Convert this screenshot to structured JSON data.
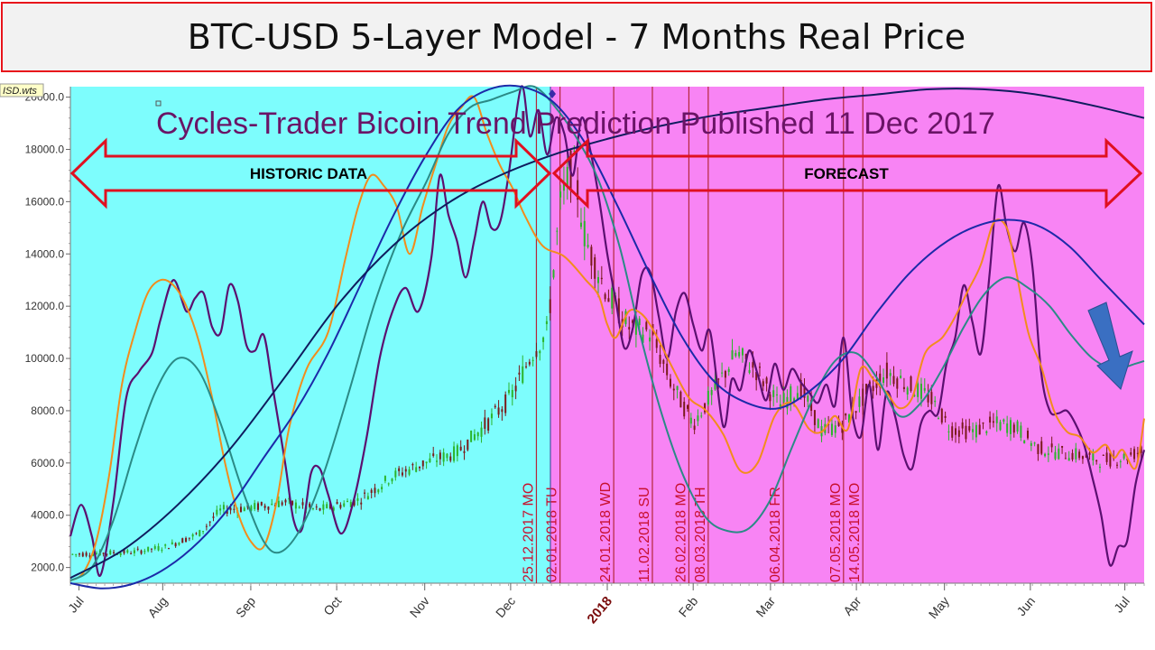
{
  "page_title": "BTC-USD 5-Layer Model - 7 Months Real Price",
  "chart_data": {
    "type": "line",
    "title": "Cycles-Trader Bicoin Trend Prediction Published 11 Dec 2017",
    "file_tag": "ISD.wts",
    "ylim": [
      1400,
      20400
    ],
    "y_ticks": [
      "2000.0",
      "4000.0",
      "6000.0",
      "8000.0",
      "10000.0",
      "12000.0",
      "14000.0",
      "16000.0",
      "18000.0",
      "20000.0"
    ],
    "months": [
      "Jul",
      "Aug",
      "Sep",
      "Oct",
      "Nov",
      "Dec",
      "2018",
      "Feb",
      "Mar",
      "Apr",
      "May",
      "Jun",
      "Jul"
    ],
    "regions": [
      {
        "name": "historic",
        "label": "HISTORIC DATA",
        "color": "#7dfdfd"
      },
      {
        "name": "forecast",
        "label": "FORECAST",
        "color": "#f884f4"
      }
    ],
    "markers": [
      {
        "date": "25.12.2017 MO"
      },
      {
        "date": "02.01.2018 TU"
      },
      {
        "date": "24.01.2018 WD"
      },
      {
        "date": "11.02.2018 SU"
      },
      {
        "date": "26.02.2018 MO"
      },
      {
        "date": "08.03.2018 TH"
      },
      {
        "date": "06.04.2018 FR"
      },
      {
        "date": "07.05.2018 MO"
      },
      {
        "date": "14.05.2018 MO"
      }
    ],
    "series": [
      {
        "color": "#5b1070",
        "style": "purple-line",
        "values": [
          [
            0,
            3200
          ],
          [
            5,
            4400
          ],
          [
            10,
            3200
          ],
          [
            14,
            1700
          ],
          [
            20,
            4500
          ],
          [
            26,
            8500
          ],
          [
            32,
            9500
          ],
          [
            38,
            10200
          ],
          [
            42,
            11500
          ],
          [
            48,
            13000
          ],
          [
            54,
            11800
          ],
          [
            58,
            12300
          ],
          [
            62,
            12500
          ],
          [
            66,
            11200
          ],
          [
            70,
            11000
          ],
          [
            74,
            12800
          ],
          [
            78,
            12200
          ],
          [
            82,
            10500
          ],
          [
            86,
            10300
          ],
          [
            90,
            10900
          ],
          [
            94,
            9000
          ],
          [
            100,
            6000
          ],
          [
            104,
            3800
          ],
          [
            108,
            3500
          ],
          [
            112,
            5600
          ],
          [
            116,
            5800
          ],
          [
            120,
            4800
          ],
          [
            126,
            3300
          ],
          [
            132,
            4600
          ],
          [
            138,
            7000
          ],
          [
            144,
            10000
          ],
          [
            150,
            11800
          ],
          [
            156,
            12700
          ],
          [
            162,
            11800
          ],
          [
            168,
            13800
          ],
          [
            172,
            17000
          ],
          [
            176,
            15500
          ],
          [
            180,
            14500
          ],
          [
            184,
            13100
          ],
          [
            188,
            14500
          ],
          [
            192,
            16000
          ],
          [
            196,
            15000
          ],
          [
            200,
            15200
          ],
          [
            204,
            17000
          ],
          [
            210,
            20400
          ],
          [
            214,
            18500
          ],
          [
            218,
            19500
          ],
          [
            222,
            17800
          ],
          [
            226,
            19200
          ],
          [
            230,
            18600
          ],
          [
            234,
            17000
          ],
          [
            238,
            19200
          ],
          [
            242,
            18000
          ],
          [
            246,
            16200
          ],
          [
            250,
            14000
          ],
          [
            254,
            12200
          ],
          [
            258,
            10400
          ],
          [
            262,
            11200
          ],
          [
            266,
            13200
          ],
          [
            270,
            13300
          ],
          [
            274,
            11600
          ],
          [
            278,
            10000
          ],
          [
            282,
            11800
          ],
          [
            286,
            12500
          ],
          [
            290,
            11300
          ],
          [
            294,
            10300
          ],
          [
            298,
            11000
          ],
          [
            304,
            7400
          ],
          [
            308,
            9200
          ],
          [
            312,
            8800
          ],
          [
            316,
            10300
          ],
          [
            320,
            9400
          ],
          [
            324,
            8400
          ],
          [
            328,
            9800
          ],
          [
            332,
            8800
          ],
          [
            336,
            9600
          ],
          [
            340,
            9100
          ],
          [
            344,
            8700
          ],
          [
            348,
            8300
          ],
          [
            352,
            9000
          ],
          [
            356,
            8200
          ],
          [
            360,
            10800
          ],
          [
            364,
            7900
          ],
          [
            368,
            7000
          ],
          [
            372,
            9000
          ],
          [
            376,
            6500
          ],
          [
            380,
            8700
          ],
          [
            384,
            7800
          ],
          [
            388,
            6300
          ],
          [
            392,
            5800
          ],
          [
            396,
            7500
          ],
          [
            400,
            8000
          ],
          [
            404,
            7900
          ],
          [
            408,
            9800
          ],
          [
            412,
            10800
          ],
          [
            416,
            12800
          ],
          [
            420,
            11400
          ],
          [
            424,
            10200
          ],
          [
            428,
            13200
          ],
          [
            432,
            16600
          ],
          [
            436,
            15000
          ],
          [
            440,
            14100
          ],
          [
            444,
            15200
          ],
          [
            448,
            13500
          ],
          [
            452,
            9500
          ],
          [
            456,
            8000
          ],
          [
            460,
            7900
          ],
          [
            464,
            8000
          ],
          [
            468,
            7500
          ],
          [
            472,
            6700
          ],
          [
            476,
            5400
          ],
          [
            480,
            4000
          ],
          [
            484,
            2100
          ],
          [
            488,
            2800
          ],
          [
            492,
            3000
          ],
          [
            496,
            5200
          ],
          [
            500,
            6500
          ]
        ]
      },
      {
        "color": "#f28c1c",
        "style": "orange-line",
        "values": [
          [
            0,
            1500
          ],
          [
            6,
            1800
          ],
          [
            12,
            3000
          ],
          [
            18,
            5500
          ],
          [
            24,
            9000
          ],
          [
            30,
            11000
          ],
          [
            36,
            12500
          ],
          [
            42,
            13000
          ],
          [
            48,
            12800
          ],
          [
            54,
            12000
          ],
          [
            60,
            10600
          ],
          [
            66,
            8500
          ],
          [
            72,
            6000
          ],
          [
            78,
            4100
          ],
          [
            84,
            3000
          ],
          [
            90,
            2800
          ],
          [
            96,
            4500
          ],
          [
            102,
            7400
          ],
          [
            110,
            9600
          ],
          [
            120,
            11000
          ],
          [
            128,
            13800
          ],
          [
            134,
            15800
          ],
          [
            140,
            17000
          ],
          [
            146,
            16600
          ],
          [
            152,
            15800
          ],
          [
            158,
            14000
          ],
          [
            164,
            15800
          ],
          [
            170,
            17400
          ],
          [
            176,
            18900
          ],
          [
            182,
            19600
          ],
          [
            188,
            20000
          ],
          [
            194,
            18600
          ],
          [
            200,
            17400
          ],
          [
            206,
            16500
          ],
          [
            212,
            15400
          ],
          [
            220,
            14300
          ],
          [
            230,
            13900
          ],
          [
            240,
            13000
          ],
          [
            246,
            12400
          ],
          [
            250,
            11300
          ],
          [
            254,
            10800
          ],
          [
            260,
            11800
          ],
          [
            266,
            11700
          ],
          [
            272,
            11000
          ],
          [
            280,
            9700
          ],
          [
            288,
            8500
          ],
          [
            296,
            8000
          ],
          [
            304,
            7100
          ],
          [
            312,
            5700
          ],
          [
            320,
            6000
          ],
          [
            328,
            7800
          ],
          [
            336,
            8300
          ],
          [
            344,
            7300
          ],
          [
            350,
            7200
          ],
          [
            356,
            7800
          ],
          [
            362,
            7300
          ],
          [
            368,
            9600
          ],
          [
            374,
            9200
          ],
          [
            380,
            8700
          ],
          [
            386,
            8100
          ],
          [
            392,
            8500
          ],
          [
            398,
            10200
          ],
          [
            406,
            10800
          ],
          [
            412,
            11600
          ],
          [
            418,
            12600
          ],
          [
            424,
            13600
          ],
          [
            430,
            15200
          ],
          [
            436,
            15000
          ],
          [
            440,
            13500
          ],
          [
            446,
            11000
          ],
          [
            452,
            9700
          ],
          [
            458,
            8000
          ],
          [
            464,
            7200
          ],
          [
            470,
            7000
          ],
          [
            476,
            6400
          ],
          [
            482,
            6700
          ],
          [
            486,
            6200
          ],
          [
            490,
            6500
          ],
          [
            496,
            5800
          ],
          [
            500,
            7700
          ]
        ]
      },
      {
        "color": "#2b8a86",
        "style": "teal-line",
        "values": [
          [
            0,
            1500
          ],
          [
            10,
            2000
          ],
          [
            20,
            3800
          ],
          [
            30,
            6500
          ],
          [
            40,
            8800
          ],
          [
            50,
            10000
          ],
          [
            60,
            9500
          ],
          [
            70,
            7500
          ],
          [
            80,
            5000
          ],
          [
            90,
            3000
          ],
          [
            98,
            2600
          ],
          [
            108,
            3600
          ],
          [
            118,
            5600
          ],
          [
            130,
            8800
          ],
          [
            142,
            12200
          ],
          [
            154,
            14800
          ],
          [
            166,
            16800
          ],
          [
            176,
            18600
          ],
          [
            186,
            19600
          ],
          [
            196,
            19900
          ],
          [
            206,
            20200
          ],
          [
            216,
            20400
          ],
          [
            226,
            19600
          ],
          [
            236,
            18400
          ],
          [
            246,
            16800
          ],
          [
            256,
            14200
          ],
          [
            266,
            10700
          ],
          [
            276,
            7700
          ],
          [
            286,
            5400
          ],
          [
            296,
            3900
          ],
          [
            306,
            3400
          ],
          [
            316,
            3500
          ],
          [
            326,
            4600
          ],
          [
            336,
            6600
          ],
          [
            346,
            8500
          ],
          [
            356,
            9900
          ],
          [
            366,
            10200
          ],
          [
            376,
            9200
          ],
          [
            386,
            7800
          ],
          [
            396,
            8300
          ],
          [
            406,
            9600
          ],
          [
            416,
            11200
          ],
          [
            426,
            12500
          ],
          [
            436,
            13100
          ],
          [
            446,
            12700
          ],
          [
            456,
            12000
          ],
          [
            466,
            10900
          ],
          [
            476,
            10000
          ],
          [
            486,
            9600
          ],
          [
            496,
            9800
          ],
          [
            500,
            9900
          ]
        ]
      },
      {
        "color": "#1c2aa8",
        "style": "blue-line",
        "values": [
          [
            0,
            1400
          ],
          [
            15,
            1200
          ],
          [
            30,
            1400
          ],
          [
            45,
            2000
          ],
          [
            60,
            3000
          ],
          [
            75,
            4400
          ],
          [
            90,
            6200
          ],
          [
            105,
            8000
          ],
          [
            120,
            10200
          ],
          [
            135,
            12800
          ],
          [
            150,
            15400
          ],
          [
            165,
            17700
          ],
          [
            180,
            19500
          ],
          [
            195,
            20300
          ],
          [
            210,
            20400
          ],
          [
            225,
            19800
          ],
          [
            240,
            18200
          ],
          [
            255,
            15800
          ],
          [
            270,
            13200
          ],
          [
            285,
            10800
          ],
          [
            300,
            9100
          ],
          [
            315,
            8300
          ],
          [
            330,
            8100
          ],
          [
            345,
            8800
          ],
          [
            360,
            10000
          ],
          [
            375,
            11700
          ],
          [
            390,
            13200
          ],
          [
            405,
            14300
          ],
          [
            420,
            15000
          ],
          [
            435,
            15300
          ],
          [
            450,
            15100
          ],
          [
            465,
            14300
          ],
          [
            480,
            13000
          ],
          [
            500,
            11300
          ]
        ]
      },
      {
        "color": "#0f1c5e",
        "style": "navy-line",
        "values": [
          [
            0,
            1600
          ],
          [
            25,
            2700
          ],
          [
            50,
            4400
          ],
          [
            75,
            6600
          ],
          [
            100,
            9300
          ],
          [
            125,
            12100
          ],
          [
            150,
            14300
          ],
          [
            175,
            15900
          ],
          [
            200,
            17000
          ],
          [
            225,
            17800
          ],
          [
            250,
            18400
          ],
          [
            275,
            18900
          ],
          [
            300,
            19300
          ],
          [
            325,
            19600
          ],
          [
            350,
            19900
          ],
          [
            375,
            20100
          ],
          [
            400,
            20300
          ],
          [
            425,
            20300
          ],
          [
            450,
            20100
          ],
          [
            475,
            19700
          ],
          [
            500,
            19200
          ]
        ]
      }
    ]
  }
}
